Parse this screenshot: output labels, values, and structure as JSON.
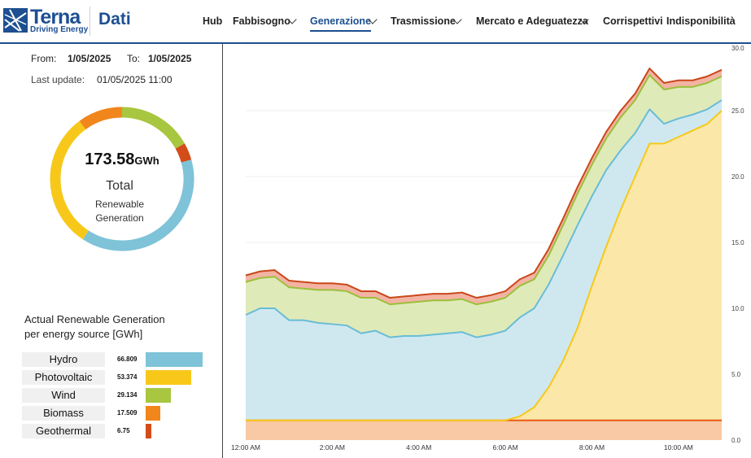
{
  "brand": {
    "name": "Terna",
    "tagline": "Driving Energy",
    "section": "Dati"
  },
  "nav": [
    {
      "label": "Hub",
      "dropdown": false,
      "active": false
    },
    {
      "label": "Fabbisogno",
      "dropdown": true,
      "active": false
    },
    {
      "label": "Generazione",
      "dropdown": true,
      "active": true
    },
    {
      "label": "Trasmissione",
      "dropdown": true,
      "active": false
    },
    {
      "label": "Mercato e Adeguatezza",
      "dropdown": true,
      "active": false
    },
    {
      "label": "Corrispettivi",
      "dropdown": false,
      "active": false
    },
    {
      "label": "Indisponibilità",
      "dropdown": false,
      "active": false
    }
  ],
  "filters": {
    "from_label": "From:",
    "from_value": "1/05/2025",
    "to_label": "To:",
    "to_value": "1/05/2025",
    "update_label": "Last update:",
    "update_value": "01/05/2025 11:00"
  },
  "summary": {
    "total_value": "173.58",
    "total_unit": "GWh",
    "total_label": "Total",
    "subtitle_line1": "Renewable",
    "subtitle_line2": "Generation"
  },
  "breakdown": {
    "title_line1": "Actual Renewable Generation",
    "title_line2": "per energy source [GWh]"
  },
  "colors": {
    "hydro": "#7ec3d8",
    "photovoltaic": "#f7c81a",
    "wind": "#a8c63f",
    "biomass": "#f0861c",
    "geothermal": "#d24d1a",
    "nav_accent": "#1d4f91"
  },
  "chart_data": [
    {
      "type": "pie",
      "style": "donut",
      "categories": [
        "Hydro",
        "Photovoltaic",
        "Wind",
        "Biomass",
        "Geothermal"
      ],
      "values": [
        66.809,
        53.374,
        29.134,
        17.509,
        6.75
      ]
    },
    {
      "type": "bar",
      "orientation": "horizontal",
      "categories": [
        "Hydro",
        "Photovoltaic",
        "Wind",
        "Biomass",
        "Geothermal"
      ],
      "values": [
        66.809,
        53.374,
        29.134,
        17.509,
        6.75
      ],
      "data_labels": [
        "66.809",
        "53.374",
        "29.134",
        "17.509",
        "6.75"
      ]
    },
    {
      "type": "area",
      "stacked": true,
      "x_ticks": [
        "12:00 AM",
        "2:00 AM",
        "4:00 AM",
        "6:00 AM",
        "8:00 AM",
        "10:00 AM"
      ],
      "x_tick_hours": [
        0,
        2,
        4,
        6,
        8,
        10
      ],
      "x": [
        0,
        0.333,
        0.667,
        1,
        1.333,
        1.667,
        2,
        2.333,
        2.667,
        3,
        3.333,
        3.667,
        4,
        4.333,
        4.667,
        5,
        5.333,
        5.667,
        6,
        6.333,
        6.667,
        7,
        7.333,
        7.667,
        8,
        8.333,
        8.667,
        9,
        9.333,
        9.667,
        10,
        10.333,
        10.667,
        11
      ],
      "ylim": [
        0,
        30
      ],
      "y_ticks": [
        "0.0",
        "5.0",
        "10.0",
        "15.0",
        "20.0",
        "25.0",
        "30.0"
      ],
      "y_tick_values": [
        0,
        5,
        10,
        15,
        20,
        25,
        30
      ],
      "grid": true,
      "series": [
        {
          "name": "Biomass",
          "values": [
            1.5,
            1.5,
            1.5,
            1.5,
            1.5,
            1.5,
            1.5,
            1.5,
            1.5,
            1.5,
            1.5,
            1.5,
            1.5,
            1.5,
            1.5,
            1.5,
            1.5,
            1.5,
            1.5,
            1.5,
            1.5,
            1.5,
            1.5,
            1.5,
            1.5,
            1.5,
            1.5,
            1.5,
            1.5,
            1.5,
            1.5,
            1.5,
            1.5,
            1.5
          ]
        },
        {
          "name": "Photovoltaic",
          "values": [
            0,
            0,
            0,
            0,
            0,
            0,
            0,
            0,
            0,
            0,
            0,
            0,
            0,
            0,
            0,
            0,
            0,
            0,
            0,
            0.3,
            1,
            2.5,
            4.5,
            7,
            10.2,
            13.2,
            16,
            18.5,
            21,
            21,
            21.5,
            22,
            22.5,
            23.5
          ]
        },
        {
          "name": "Hydro",
          "values": [
            8,
            8.5,
            8.5,
            7.6,
            7.6,
            7.4,
            7.3,
            7.2,
            6.6,
            6.8,
            6.3,
            6.4,
            6.4,
            6.5,
            6.6,
            6.7,
            6.3,
            6.5,
            6.8,
            7.5,
            7.5,
            7.8,
            8,
            7.8,
            6.8,
            5.8,
            4.5,
            3.3,
            2.6,
            1.5,
            1.4,
            1.2,
            1.1,
            0.8
          ]
        },
        {
          "name": "Wind",
          "values": [
            2.5,
            2.3,
            2.4,
            2.5,
            2.4,
            2.5,
            2.6,
            2.6,
            2.7,
            2.5,
            2.5,
            2.5,
            2.6,
            2.6,
            2.5,
            2.5,
            2.5,
            2.5,
            2.5,
            2.4,
            2.2,
            2.2,
            2.3,
            2.4,
            2.4,
            2.4,
            2.5,
            2.5,
            2.6,
            2.6,
            2.4,
            2.1,
            2,
            1.8
          ]
        },
        {
          "name": "Geothermal",
          "values": [
            0.5,
            0.5,
            0.5,
            0.5,
            0.5,
            0.5,
            0.5,
            0.5,
            0.5,
            0.5,
            0.5,
            0.5,
            0.5,
            0.5,
            0.5,
            0.5,
            0.5,
            0.5,
            0.5,
            0.5,
            0.5,
            0.5,
            0.5,
            0.5,
            0.5,
            0.5,
            0.5,
            0.5,
            0.5,
            0.5,
            0.5,
            0.5,
            0.5,
            0.5
          ]
        }
      ]
    }
  ]
}
